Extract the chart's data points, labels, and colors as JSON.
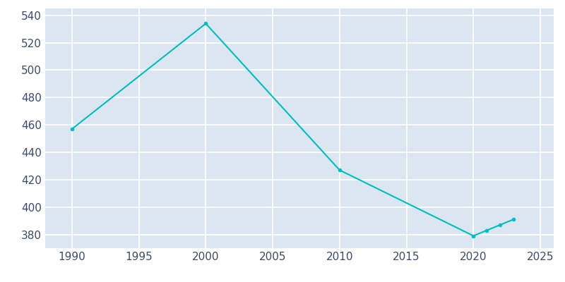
{
  "years": [
    1990,
    2000,
    2010,
    2020,
    2021,
    2022,
    2023
  ],
  "population": [
    457,
    534,
    427,
    379,
    383,
    387,
    391
  ],
  "line_color": "#00BEBE",
  "plot_bg_color": "#DCE6F0",
  "fig_bg_color": "#FFFFFF",
  "grid_color": "#FFFFFF",
  "tick_label_color": "#3B4A6B",
  "xlim": [
    1988,
    2026
  ],
  "ylim": [
    370,
    545
  ],
  "yticks": [
    380,
    400,
    420,
    440,
    460,
    480,
    500,
    520,
    540
  ],
  "xticks": [
    1990,
    1995,
    2000,
    2005,
    2010,
    2015,
    2020,
    2025
  ],
  "linewidth": 1.5,
  "markersize": 3.5
}
